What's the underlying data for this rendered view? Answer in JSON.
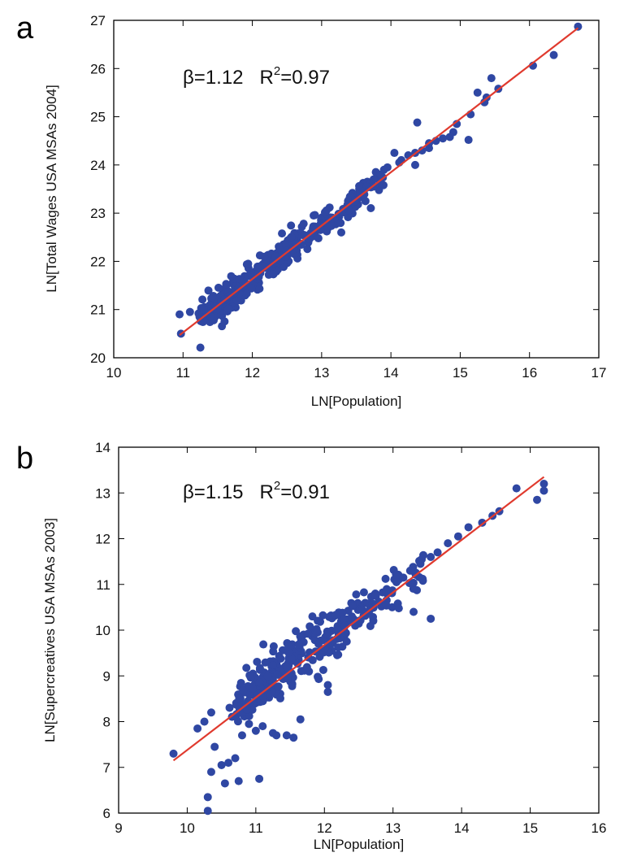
{
  "chart_data": [
    {
      "type": "scatter",
      "panel_label": "a",
      "xlabel": "LN[Population]",
      "ylabel": "LN[Total Wages USA MSAs 2004]",
      "xlim": [
        10,
        17
      ],
      "ylim": [
        20,
        27
      ],
      "xticks": [
        10,
        11,
        12,
        13,
        14,
        15,
        16,
        17
      ],
      "yticks": [
        20,
        21,
        22,
        23,
        24,
        25,
        26,
        27
      ],
      "annotation": {
        "beta": "β=1.12",
        "r2_prefix": "R",
        "r2_sup": "2",
        "r2_value": "=0.97"
      },
      "grid": false,
      "colors": {
        "points": "#2f47a3",
        "fit": "#e03a2e",
        "frame": "#000000"
      },
      "fit": {
        "x": [
          10.95,
          16.7
        ],
        "y": [
          20.47,
          26.84
        ]
      },
      "series": [
        {
          "x": [
            16.7,
            16.35,
            16.05,
            15.55,
            15.45,
            15.38,
            15.35,
            15.25,
            15.12,
            15.15,
            14.95,
            14.9,
            14.85,
            14.75,
            14.65,
            14.55,
            14.45,
            14.38,
            14.35,
            14.25,
            14.15,
            14.05,
            13.95,
            13.85,
            13.75,
            13.7,
            13.65,
            13.6,
            14.55,
            14.35,
            14.12,
            13.9,
            13.75
          ],
          "y": [
            26.87,
            26.28,
            26.06,
            25.58,
            25.8,
            25.4,
            25.3,
            25.5,
            24.52,
            25.05,
            24.85,
            24.68,
            24.58,
            24.55,
            24.5,
            24.35,
            24.3,
            24.88,
            24.25,
            24.2,
            24.1,
            24.25,
            23.95,
            23.8,
            23.7,
            23.6,
            23.55,
            23.45,
            24.45,
            24.0,
            24.05,
            23.9,
            23.55
          ]
        }
      ]
    },
    {
      "type": "scatter",
      "panel_label": "b",
      "xlabel": "LN[Population]",
      "ylabel": "LN[Supercreatives USA MSAs 2003]",
      "xlim": [
        9,
        16
      ],
      "ylim": [
        6,
        14
      ],
      "xticks": [
        9,
        10,
        11,
        12,
        13,
        14,
        15,
        16
      ],
      "yticks": [
        6,
        7,
        8,
        9,
        10,
        11,
        12,
        13,
        14
      ],
      "annotation": {
        "beta": "β=1.15",
        "r2_prefix": "R",
        "r2_sup": "2",
        "r2_value": "=0.91"
      },
      "grid": false,
      "colors": {
        "points": "#2f47a3",
        "fit": "#e03a2e",
        "frame": "#000000"
      },
      "fit": {
        "x": [
          9.8,
          15.2
        ],
        "y": [
          7.15,
          13.35
        ]
      },
      "series": [
        {
          "x": [
            9.8,
            10.3,
            10.3,
            10.35,
            10.4,
            10.5,
            10.55,
            10.6,
            10.7,
            10.75,
            10.8,
            10.9,
            11.0,
            11.05,
            11.1,
            11.25,
            11.3,
            11.45,
            11.55,
            11.65,
            12.05,
            12.05,
            13.3,
            13.55,
            14.8,
            15.2,
            15.2,
            15.1,
            14.55,
            14.45,
            14.3,
            14.1,
            13.95,
            13.8,
            13.65,
            13.55,
            13.4,
            13.25,
            13.15,
            13.05,
            12.9,
            12.75,
            12.55,
            12.4,
            12.3,
            12.2
          ],
          "y": [
            7.3,
            6.05,
            6.35,
            6.9,
            7.45,
            7.05,
            6.65,
            7.1,
            7.2,
            6.7,
            7.7,
            7.95,
            7.8,
            6.75,
            7.9,
            7.75,
            7.7,
            7.7,
            7.65,
            8.05,
            8.65,
            8.8,
            10.4,
            10.25,
            13.1,
            13.2,
            13.05,
            12.85,
            12.6,
            12.5,
            12.35,
            12.25,
            12.05,
            11.9,
            11.7,
            11.6,
            11.45,
            11.3,
            11.15,
            11.05,
            10.85,
            10.75,
            10.45,
            10.3,
            10.1,
            10.0
          ]
        }
      ]
    }
  ]
}
